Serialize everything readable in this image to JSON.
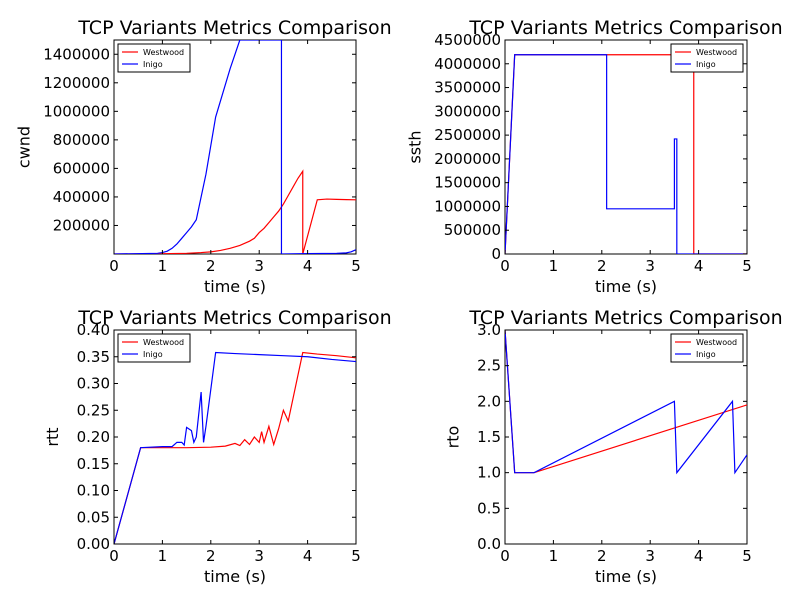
{
  "figure_background": "#ffffff",
  "chart_data": [
    {
      "type": "line",
      "title": "TCP Variants Metrics Comparison",
      "xlabel": "time (s)",
      "ylabel": "cwnd",
      "xlim": [
        0,
        5
      ],
      "ylim": [
        0,
        1500000
      ],
      "xticks": [
        0,
        1,
        2,
        3,
        4,
        5
      ],
      "xtick_labels": [
        "0",
        "1",
        "2",
        "3",
        "4",
        "5"
      ],
      "yticks": [
        200000,
        400000,
        600000,
        800000,
        1000000,
        1200000,
        1400000
      ],
      "ytick_labels": [
        "200000",
        "400000",
        "600000",
        "800000",
        "1000000",
        "1200000",
        "1400000"
      ],
      "grid": false,
      "legend_position": "top-left",
      "series": [
        {
          "name": "Westwood",
          "color": "#ff0000",
          "x": [
            0,
            1.0,
            1.5,
            1.8,
            2.0,
            2.2,
            2.4,
            2.6,
            2.8,
            2.9,
            3.0,
            3.1,
            3.2,
            3.3,
            3.4,
            3.5,
            3.6,
            3.7,
            3.8,
            3.9,
            3.9,
            4.2,
            4.4,
            4.6,
            4.8,
            5.0
          ],
          "y": [
            0,
            2000,
            5000,
            10000,
            15000,
            25000,
            40000,
            60000,
            90000,
            110000,
            150000,
            180000,
            220000,
            260000,
            300000,
            350000,
            410000,
            470000,
            530000,
            580000,
            0,
            380000,
            385000,
            383000,
            381000,
            380000
          ]
        },
        {
          "name": "Inigo",
          "color": "#0000ff",
          "x": [
            0,
            0.9,
            1.0,
            1.1,
            1.2,
            1.3,
            1.4,
            1.5,
            1.6,
            1.7,
            1.9,
            2.1,
            2.4,
            2.6,
            2.7,
            3.45,
            3.45,
            3.46,
            3.46,
            4.0,
            4.6,
            4.8,
            4.9,
            5.0
          ],
          "y": [
            0,
            5000,
            10000,
            20000,
            40000,
            70000,
            110000,
            150000,
            190000,
            240000,
            560000,
            960000,
            1300000,
            1500000,
            1500000,
            1500000,
            1500000,
            1500000,
            0,
            3000,
            5000,
            8000,
            15000,
            30000
          ]
        }
      ]
    },
    {
      "type": "line",
      "title": "TCP Variants Metrics Comparison",
      "xlabel": "time (s)",
      "ylabel": "ssth",
      "xlim": [
        0,
        5
      ],
      "ylim": [
        0,
        4500000
      ],
      "xticks": [
        0,
        1,
        2,
        3,
        4,
        5
      ],
      "xtick_labels": [
        "0",
        "1",
        "2",
        "3",
        "4",
        "5"
      ],
      "yticks": [
        0,
        500000,
        1000000,
        1500000,
        2000000,
        2500000,
        3000000,
        3500000,
        4000000,
        4500000
      ],
      "ytick_labels": [
        "0",
        "500000",
        "1000000",
        "1500000",
        "2000000",
        "2500000",
        "3000000",
        "3500000",
        "4000000",
        "4500000"
      ],
      "grid": false,
      "legend_position": "top-right",
      "series": [
        {
          "name": "Westwood",
          "color": "#ff0000",
          "x": [
            0,
            0.2,
            3.9,
            3.9,
            5.0
          ],
          "y": [
            0,
            4190000,
            4190000,
            0,
            0
          ]
        },
        {
          "name": "Inigo",
          "color": "#0000ff",
          "x": [
            0,
            0.2,
            2.1,
            2.1,
            3.5,
            3.5,
            3.55,
            3.55,
            4.0,
            5.0
          ],
          "y": [
            0,
            4190000,
            4190000,
            950000,
            950000,
            2420000,
            2420000,
            0,
            0,
            0
          ]
        }
      ]
    },
    {
      "type": "line",
      "title": "TCP Variants Metrics Comparison",
      "xlabel": "time (s)",
      "ylabel": "rtt",
      "xlim": [
        0,
        5
      ],
      "ylim": [
        0,
        0.4
      ],
      "xticks": [
        0,
        1,
        2,
        3,
        4,
        5
      ],
      "xtick_labels": [
        "0",
        "1",
        "2",
        "3",
        "4",
        "5"
      ],
      "yticks": [
        0.0,
        0.05,
        0.1,
        0.15,
        0.2,
        0.25,
        0.3,
        0.35,
        0.4
      ],
      "ytick_labels": [
        "0.00",
        "0.05",
        "0.10",
        "0.15",
        "0.20",
        "0.25",
        "0.30",
        "0.35",
        "0.40"
      ],
      "grid": false,
      "legend_position": "top-left",
      "series": [
        {
          "name": "Westwood",
          "color": "#ff0000",
          "x": [
            0,
            0.55,
            1.0,
            1.5,
            2.0,
            2.3,
            2.5,
            2.6,
            2.7,
            2.8,
            2.9,
            3.0,
            3.05,
            3.1,
            3.2,
            3.3,
            3.4,
            3.5,
            3.6,
            3.9,
            4.2,
            4.6,
            5.0
          ],
          "y": [
            0,
            0.18,
            0.18,
            0.18,
            0.181,
            0.183,
            0.188,
            0.184,
            0.195,
            0.186,
            0.2,
            0.19,
            0.21,
            0.19,
            0.22,
            0.186,
            0.215,
            0.25,
            0.23,
            0.358,
            0.355,
            0.352,
            0.348
          ]
        },
        {
          "name": "Inigo",
          "color": "#0000ff",
          "x": [
            0,
            0.55,
            1.0,
            1.2,
            1.3,
            1.4,
            1.45,
            1.5,
            1.6,
            1.65,
            1.7,
            1.8,
            1.85,
            1.9,
            2.1,
            2.5,
            3.0,
            3.5,
            4.0,
            4.5,
            5.0
          ],
          "y": [
            0,
            0.18,
            0.182,
            0.182,
            0.19,
            0.19,
            0.185,
            0.218,
            0.212,
            0.19,
            0.2,
            0.284,
            0.19,
            0.22,
            0.358,
            0.356,
            0.354,
            0.352,
            0.35,
            0.345,
            0.341
          ]
        }
      ]
    },
    {
      "type": "line",
      "title": "TCP Variants Metrics Comparison",
      "xlabel": "time (s)",
      "ylabel": "rto",
      "xlim": [
        0,
        5
      ],
      "ylim": [
        0,
        3
      ],
      "xticks": [
        0,
        1,
        2,
        3,
        4,
        5
      ],
      "xtick_labels": [
        "0",
        "1",
        "2",
        "3",
        "4",
        "5"
      ],
      "yticks": [
        0.0,
        0.5,
        1.0,
        1.5,
        2.0,
        2.5,
        3.0
      ],
      "ytick_labels": [
        "0.0",
        "0.5",
        "1.0",
        "1.5",
        "2.0",
        "2.5",
        "3.0"
      ],
      "grid": false,
      "legend_position": "top-right",
      "series": [
        {
          "name": "Westwood",
          "color": "#ff0000",
          "x": [
            0,
            0.2,
            0.6,
            5.0
          ],
          "y": [
            3.0,
            1.0,
            1.0,
            1.95
          ]
        },
        {
          "name": "Inigo",
          "color": "#0000ff",
          "x": [
            0,
            0.2,
            0.6,
            3.5,
            3.55,
            4.7,
            4.75,
            5.0
          ],
          "y": [
            3.0,
            1.0,
            1.0,
            2.0,
            1.0,
            2.0,
            1.0,
            1.25
          ]
        }
      ]
    }
  ]
}
